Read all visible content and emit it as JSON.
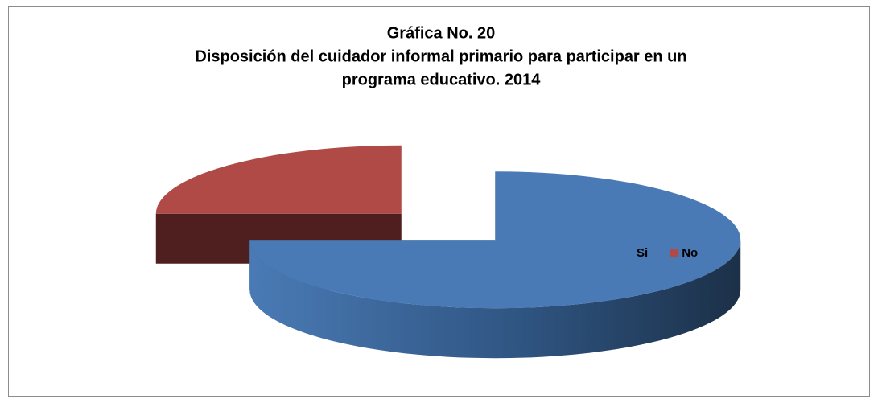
{
  "chart_data": {
    "type": "pie3d",
    "title": "Gráfica No. 20",
    "subtitle": [
      "Disposición  del cuidador informal primario para participar en un",
      "programa educativo. 2014"
    ],
    "categories": [
      "Si",
      "No"
    ],
    "values": [
      75,
      25
    ],
    "colors": [
      "#4a7ab5",
      "#b04a46"
    ],
    "legend": "right"
  }
}
